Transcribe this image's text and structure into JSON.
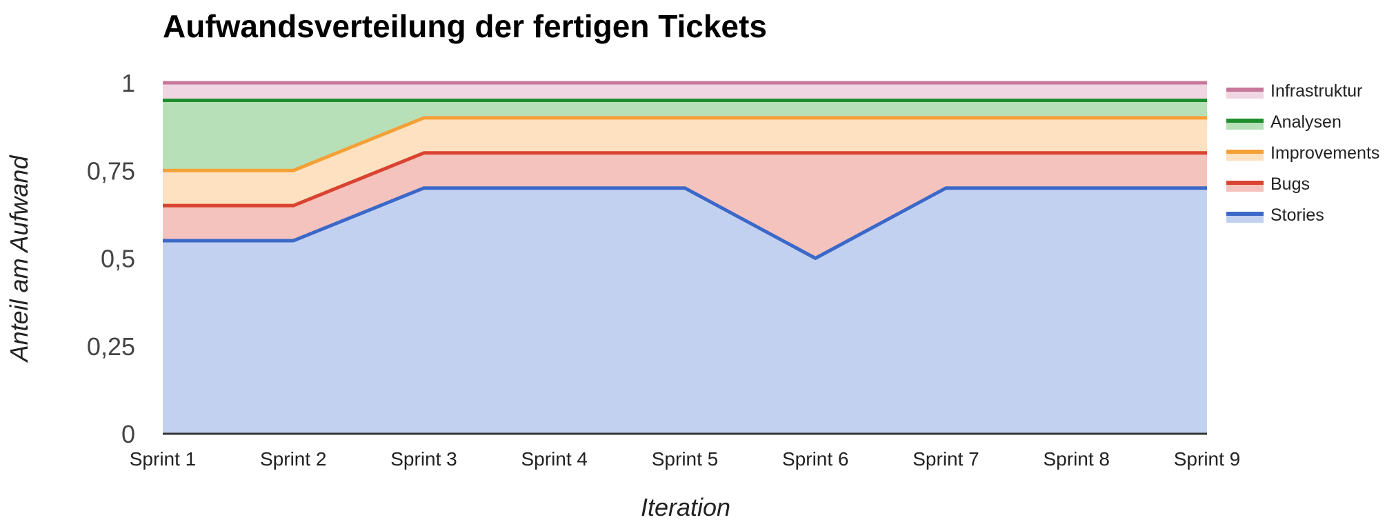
{
  "chart_data": {
    "type": "area",
    "stacked": true,
    "title": "Aufwandsverteilung der fertigen Tickets",
    "xlabel": "Iteration",
    "ylabel": "Anteil am Aufwand",
    "categories": [
      "Sprint 1",
      "Sprint 2",
      "Sprint 3",
      "Sprint 4",
      "Sprint 5",
      "Sprint 6",
      "Sprint 7",
      "Sprint 8",
      "Sprint 9"
    ],
    "ylim": [
      0,
      1
    ],
    "yticks": [
      {
        "value": 0,
        "label": "0"
      },
      {
        "value": 0.25,
        "label": "0,25"
      },
      {
        "value": 0.5,
        "label": "0,5"
      },
      {
        "value": 0.75,
        "label": "0,75"
      },
      {
        "value": 1,
        "label": "1"
      }
    ],
    "grid": true,
    "legend_position": "right",
    "series": [
      {
        "name": "Stories",
        "color": "#3b68c9",
        "fill": "#c3d1f0",
        "values": [
          0.55,
          0.55,
          0.7,
          0.7,
          0.7,
          0.5,
          0.7,
          0.7,
          0.7
        ]
      },
      {
        "name": "Bugs",
        "color": "#d9432f",
        "fill": "#f4c3bd",
        "values": [
          0.1,
          0.1,
          0.1,
          0.1,
          0.1,
          0.3,
          0.1,
          0.1,
          0.1
        ]
      },
      {
        "name": "Improvements",
        "color": "#f4a037",
        "fill": "#fde1c0",
        "values": [
          0.1,
          0.1,
          0.1,
          0.1,
          0.1,
          0.1,
          0.1,
          0.1,
          0.1
        ]
      },
      {
        "name": "Analysen",
        "color": "#1e8e2e",
        "fill": "#b8e0b8",
        "values": [
          0.2,
          0.2,
          0.05,
          0.05,
          0.05,
          0.05,
          0.05,
          0.05,
          0.05
        ]
      },
      {
        "name": "Infrastruktur",
        "color": "#c8779c",
        "fill": "#f0d6e2",
        "values": [
          0.05,
          0.05,
          0.05,
          0.05,
          0.05,
          0.05,
          0.05,
          0.05,
          0.05
        ]
      }
    ]
  }
}
